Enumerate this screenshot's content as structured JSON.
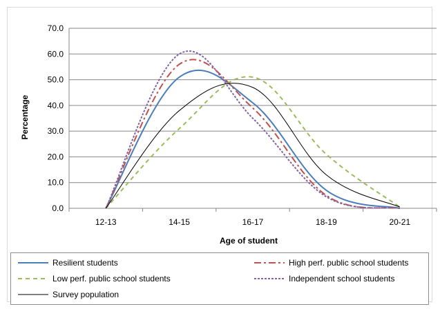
{
  "chart_data": {
    "type": "line",
    "title": "",
    "xlabel": "Age of student",
    "ylabel": "Percentage",
    "categories": [
      "12-13",
      "14-15",
      "16-17",
      "18-19",
      "20-21"
    ],
    "y_ticks": [
      "0.0",
      "10.0",
      "20.0",
      "30.0",
      "40.0",
      "50.0",
      "60.0",
      "70.0"
    ],
    "ylim": [
      0,
      70
    ],
    "grid": true,
    "legend_position": "bottom",
    "series": [
      {
        "name": "Resilient students",
        "values": [
          0.0,
          51.0,
          41.0,
          7.0,
          0.0
        ],
        "color": "#4a7ebb",
        "dash": ""
      },
      {
        "name": "High perf. public school students",
        "values": [
          0.0,
          56.0,
          39.0,
          5.0,
          0.0
        ],
        "color": "#c0504d",
        "dash": "10,4,3,4"
      },
      {
        "name": "Low perf. public school students",
        "values": [
          0.0,
          31.0,
          51.0,
          21.0,
          0.5
        ],
        "color": "#9bbb59",
        "dash": "6,5"
      },
      {
        "name": "Independent school students",
        "values": [
          0.0,
          60.0,
          35.0,
          4.5,
          0.0
        ],
        "color": "#8064a2",
        "dash": "3,2"
      },
      {
        "name": "Survey population",
        "values": [
          0.0,
          38.0,
          47.0,
          13.0,
          0.5
        ],
        "color": "#000000",
        "dash": ""
      }
    ]
  }
}
